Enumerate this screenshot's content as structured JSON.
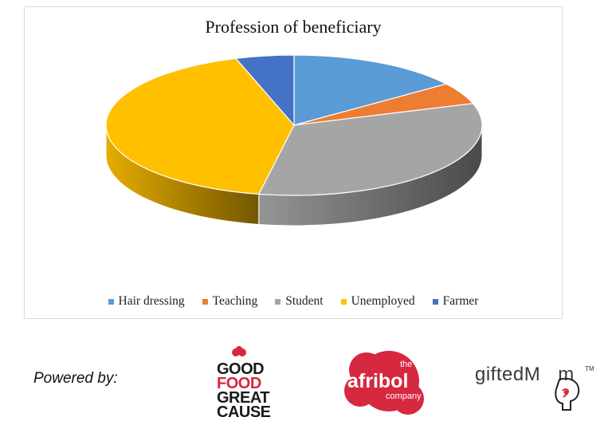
{
  "chart_data": {
    "type": "pie",
    "style": "3d",
    "title": "Profession of beneficiary",
    "categories": [
      "Hair dressing",
      "Teaching",
      "Student",
      "Unemployed",
      "Farmer"
    ],
    "values": [
      15,
      5,
      33,
      42,
      5
    ],
    "colors": [
      "#5b9bd5",
      "#ed7d31",
      "#a5a5a5",
      "#ffc000",
      "#4472c4"
    ],
    "legend_position": "bottom"
  },
  "footer": {
    "powered_by": "Powered by:",
    "logos": {
      "gfgc": [
        "GOOD",
        "FOOD",
        "GREAT",
        "CAUSE"
      ],
      "afribol": {
        "top": "the",
        "main": "afribol",
        "bottom": "company"
      },
      "giftedmom": {
        "prefix": "gifted",
        "m": "M",
        "suffix": "m",
        "tm": "TM"
      }
    }
  }
}
